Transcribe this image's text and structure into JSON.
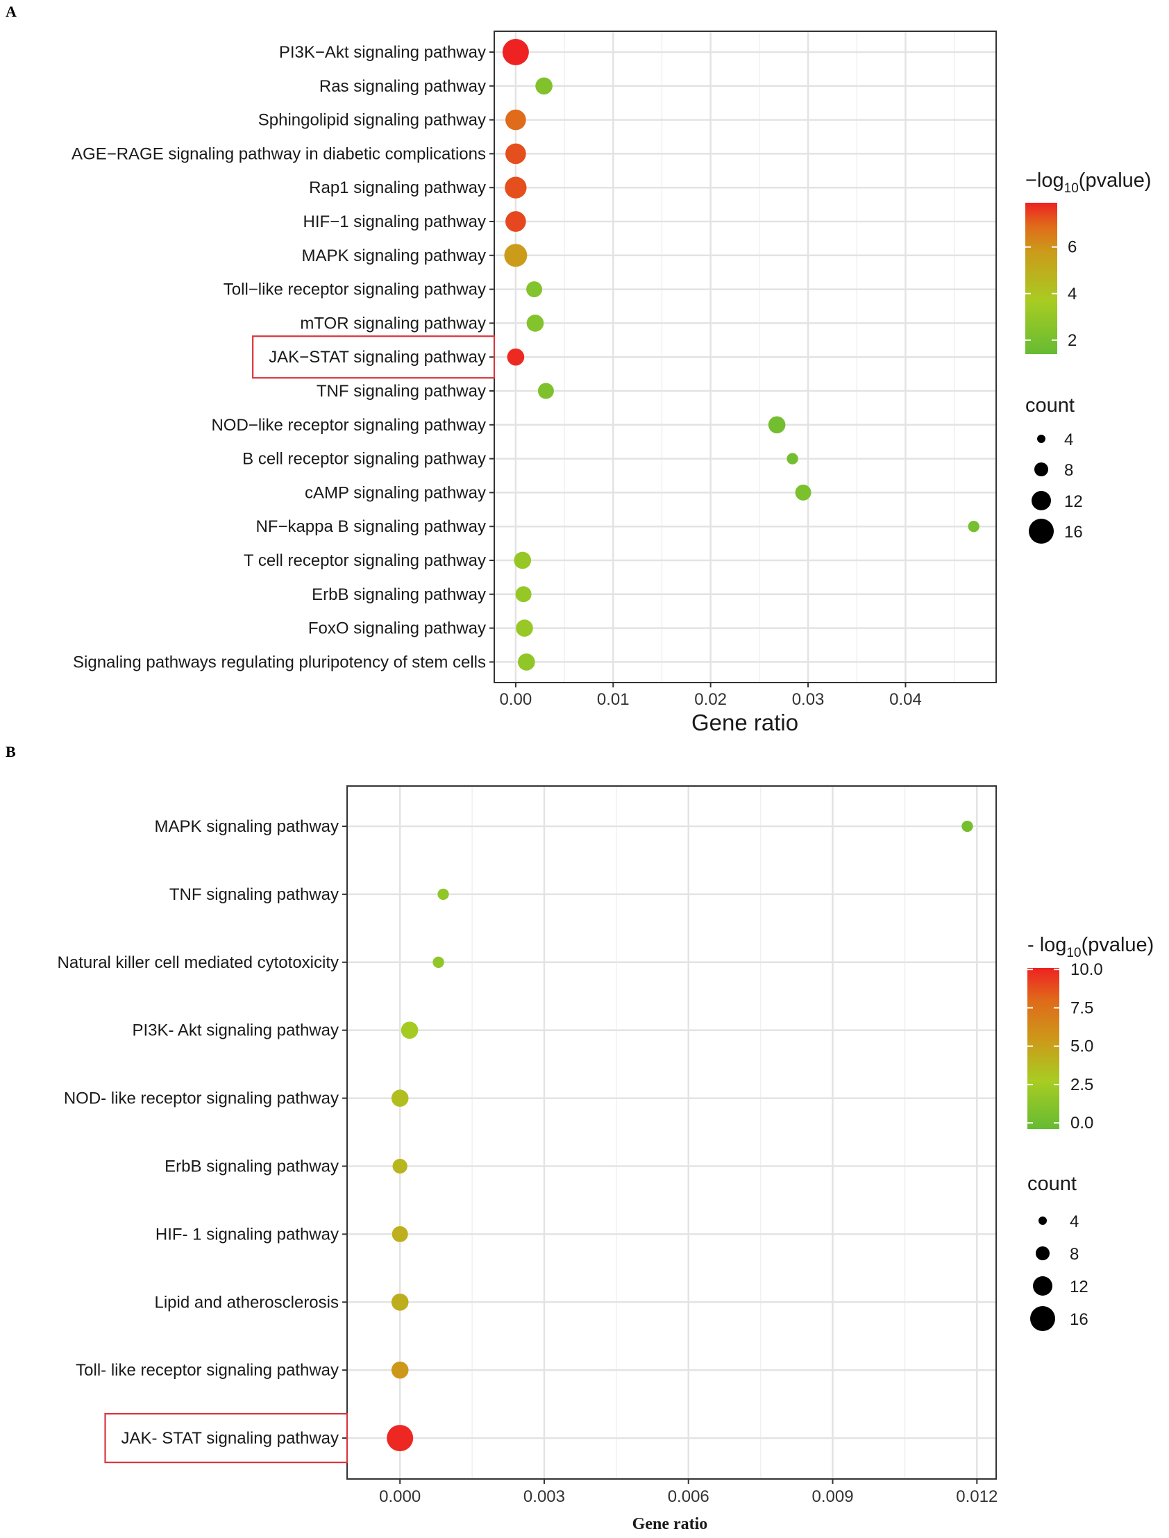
{
  "chart_data": [
    {
      "panel": "A",
      "type": "scatter",
      "xlabel": "Gene ratio",
      "xlim": [
        -0.0022,
        0.0493
      ],
      "xticks": [
        "0.00",
        "0.01",
        "0.02",
        "0.03",
        "0.04"
      ],
      "xtick_values": [
        0,
        0.01,
        0.02,
        0.03,
        0.04
      ],
      "highlighted": "JAK−STAT signaling pathway",
      "color_legend": {
        "title_main": "−log",
        "title_sub": "10",
        "title_rest": "(pvalue)",
        "ticks": [
          "2",
          "4",
          "6"
        ],
        "tick_values": [
          2,
          4,
          6
        ],
        "range": [
          1.4,
          7.9
        ],
        "low_color": "#66bb33",
        "mid_color": "#a8cc22",
        "mid2_color": "#cc9a1a",
        "high_color": "#ee2222"
      },
      "size_legend": {
        "title": "count",
        "labels": [
          "4",
          "8",
          "12",
          "16"
        ],
        "values": [
          4,
          8,
          12,
          16
        ]
      },
      "points": [
        {
          "label": "PI3K−Akt signaling pathway",
          "x": 0.0,
          "pvalue": 7.9,
          "count": 16
        },
        {
          "label": "Ras signaling pathway",
          "x": 0.0029,
          "pvalue": 2.4,
          "count": 8
        },
        {
          "label": "Sphingolipid signaling pathway",
          "x": 0.0,
          "pvalue": 6.9,
          "count": 11
        },
        {
          "label": "AGE−RAGE signaling pathway in diabetic complications",
          "x": 0.0,
          "pvalue": 7.3,
          "count": 11
        },
        {
          "label": "Rap1 signaling pathway",
          "x": 0.0,
          "pvalue": 7.3,
          "count": 12
        },
        {
          "label": "HIF−1 signaling pathway",
          "x": 0.0,
          "pvalue": 7.4,
          "count": 11
        },
        {
          "label": "MAPK signaling pathway",
          "x": 0.0,
          "pvalue": 5.6,
          "count": 13
        },
        {
          "label": "Toll−like receptor signaling pathway",
          "x": 0.0019,
          "pvalue": 2.5,
          "count": 7
        },
        {
          "label": "mTOR signaling pathway",
          "x": 0.002,
          "pvalue": 2.5,
          "count": 8
        },
        {
          "label": "JAK−STAT signaling pathway",
          "x": 0.0,
          "pvalue": 7.8,
          "count": 8
        },
        {
          "label": "TNF signaling pathway",
          "x": 0.0031,
          "pvalue": 2.3,
          "count": 7
        },
        {
          "label": "NOD−like receptor signaling pathway",
          "x": 0.0268,
          "pvalue": 1.9,
          "count": 8
        },
        {
          "label": "B cell receptor signaling pathway",
          "x": 0.0284,
          "pvalue": 1.9,
          "count": 3
        },
        {
          "label": "cAMP signaling pathway",
          "x": 0.0295,
          "pvalue": 2.2,
          "count": 7
        },
        {
          "label": "NF−kappa B signaling pathway",
          "x": 0.047,
          "pvalue": 2.0,
          "count": 3
        },
        {
          "label": "T cell receptor signaling pathway",
          "x": 0.0007,
          "pvalue": 3.2,
          "count": 8
        },
        {
          "label": "ErbB signaling pathway",
          "x": 0.0008,
          "pvalue": 3.2,
          "count": 7
        },
        {
          "label": "FoxO signaling pathway",
          "x": 0.0009,
          "pvalue": 3.3,
          "count": 8
        },
        {
          "label": "Signaling pathways regulating pluripotency of stem cells",
          "x": 0.0011,
          "pvalue": 3.0,
          "count": 8
        }
      ]
    },
    {
      "panel": "B",
      "type": "scatter",
      "xlabel": "Gene ratio",
      "xlim": [
        -0.0011,
        0.0124
      ],
      "xticks": [
        "0.000",
        "0.003",
        "0.006",
        "0.009",
        "0.012"
      ],
      "xtick_values": [
        0,
        0.003,
        0.006,
        0.009,
        0.012
      ],
      "highlighted": "JAK- STAT signaling pathway",
      "color_legend": {
        "title_main": "- log",
        "title_sub": "10",
        "title_rest": "(pvalue)",
        "ticks": [
          "0.0",
          "2.5",
          "5.0",
          "7.5",
          "10.0"
        ],
        "tick_values": [
          0,
          2.5,
          5,
          7.5,
          10
        ],
        "range": [
          -0.4,
          10.1
        ],
        "low_color": "#66bb33",
        "mid_color": "#a8cc22",
        "mid2_color": "#cc9a1a",
        "high_color": "#ee2222"
      },
      "size_legend": {
        "title": "count",
        "labels": [
          "4",
          "8",
          "12",
          "16"
        ],
        "values": [
          4,
          8,
          12,
          16
        ]
      },
      "points": [
        {
          "label": "MAPK signaling pathway",
          "x": 0.0118,
          "pvalue": 0.5,
          "count": 3
        },
        {
          "label": "TNF signaling pathway",
          "x": 0.0009,
          "pvalue": 2.2,
          "count": 3
        },
        {
          "label": "Natural killer cell mediated cytotoxicity",
          "x": 0.0008,
          "pvalue": 2.2,
          "count": 3
        },
        {
          "label": "PI3K- Akt signaling pathway",
          "x": 0.0002,
          "pvalue": 3.4,
          "count": 8
        },
        {
          "label": "NOD- like receptor signaling pathway",
          "x": 0.0,
          "pvalue": 4.4,
          "count": 8
        },
        {
          "label": "ErbB signaling pathway",
          "x": 0.0,
          "pvalue": 4.9,
          "count": 6
        },
        {
          "label": "HIF- 1 signaling pathway",
          "x": 0.0,
          "pvalue": 5.3,
          "count": 7
        },
        {
          "label": "Lipid and atherosclerosis",
          "x": 0.0,
          "pvalue": 5.4,
          "count": 8
        },
        {
          "label": "Toll- like receptor signaling pathway",
          "x": 0.0,
          "pvalue": 6.6,
          "count": 8
        },
        {
          "label": "JAK- STAT signaling pathway",
          "x": 0.0,
          "pvalue": 10.0,
          "count": 16
        }
      ]
    }
  ]
}
